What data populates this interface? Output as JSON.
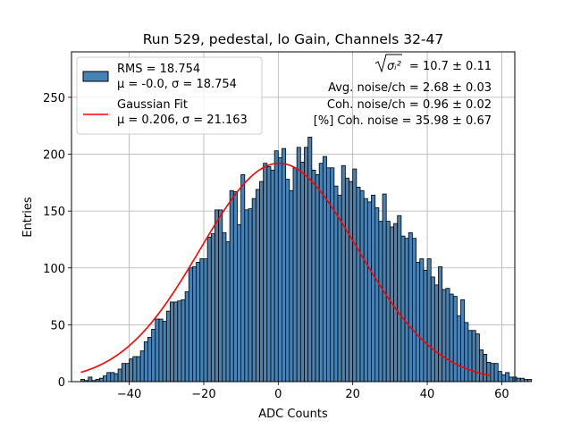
{
  "chart_data": {
    "type": "histogram",
    "title": "Run 529, pedestal, lo Gain, Channels 32-47",
    "xlabel": "ADC Counts",
    "ylabel": "Entries",
    "xlim": [
      -55.5,
      63.5
    ],
    "ylim": [
      0,
      290
    ],
    "xticks": [
      -40,
      -20,
      0,
      20,
      40,
      60
    ],
    "yticks": [
      0,
      50,
      100,
      150,
      200,
      250
    ],
    "grid": true,
    "bin_width": 1,
    "bin_start": -53,
    "bin_counts": [
      2,
      1,
      4,
      1,
      2,
      3,
      5,
      8,
      8,
      7,
      11,
      16,
      16,
      20,
      22,
      22,
      27,
      35,
      39,
      46,
      55,
      55,
      53,
      62,
      70,
      70,
      71,
      72,
      79,
      100,
      101,
      105,
      108,
      108,
      127,
      130,
      151,
      151,
      131,
      123,
      168,
      167,
      138,
      182,
      151,
      152,
      161,
      169,
      176,
      192,
      189,
      186,
      203,
      197,
      205,
      178,
      168,
      188,
      206,
      193,
      206,
      215,
      186,
      182,
      192,
      198,
      188,
      188,
      172,
      164,
      190,
      179,
      176,
      187,
      171,
      168,
      161,
      158,
      164,
      153,
      141,
      165,
      141,
      136,
      139,
      146,
      128,
      126,
      131,
      126,
      105,
      108,
      98,
      108,
      92,
      85,
      101,
      81,
      82,
      77,
      75,
      58,
      72,
      52,
      45,
      45,
      42,
      28,
      24,
      17,
      16,
      16,
      9,
      6,
      8,
      4,
      4,
      3,
      3,
      2,
      2
    ],
    "bar_color": "#4682b4",
    "bar_edge_color": "#000000",
    "fit": {
      "name": "Gaussian Fit",
      "mu": 0.206,
      "sigma": 21.163,
      "amplitude": 192,
      "x_range": [
        -53,
        57
      ],
      "color": "#ff0000"
    },
    "legend": {
      "location": "top-left",
      "entries": [
        {
          "kind": "patch",
          "line1": "RMS = 18.754",
          "line2": "μ = -0.0, σ = 18.754"
        },
        {
          "kind": "line",
          "line1": "Gaussian Fit",
          "line2": "μ = 0.206, σ = 21.163"
        }
      ]
    },
    "annotations": [
      {
        "prefix": "",
        "symbol": "σᵢ²",
        "text": "= 10.7 ± 0.11",
        "sqrt": true
      },
      {
        "text": "Avg. noise/ch = 2.68 ± 0.03"
      },
      {
        "text": "Coh. noise/ch = 0.96 ± 0.02"
      },
      {
        "text": "[%] Coh. noise = 35.98 ± 0.67"
      }
    ]
  }
}
